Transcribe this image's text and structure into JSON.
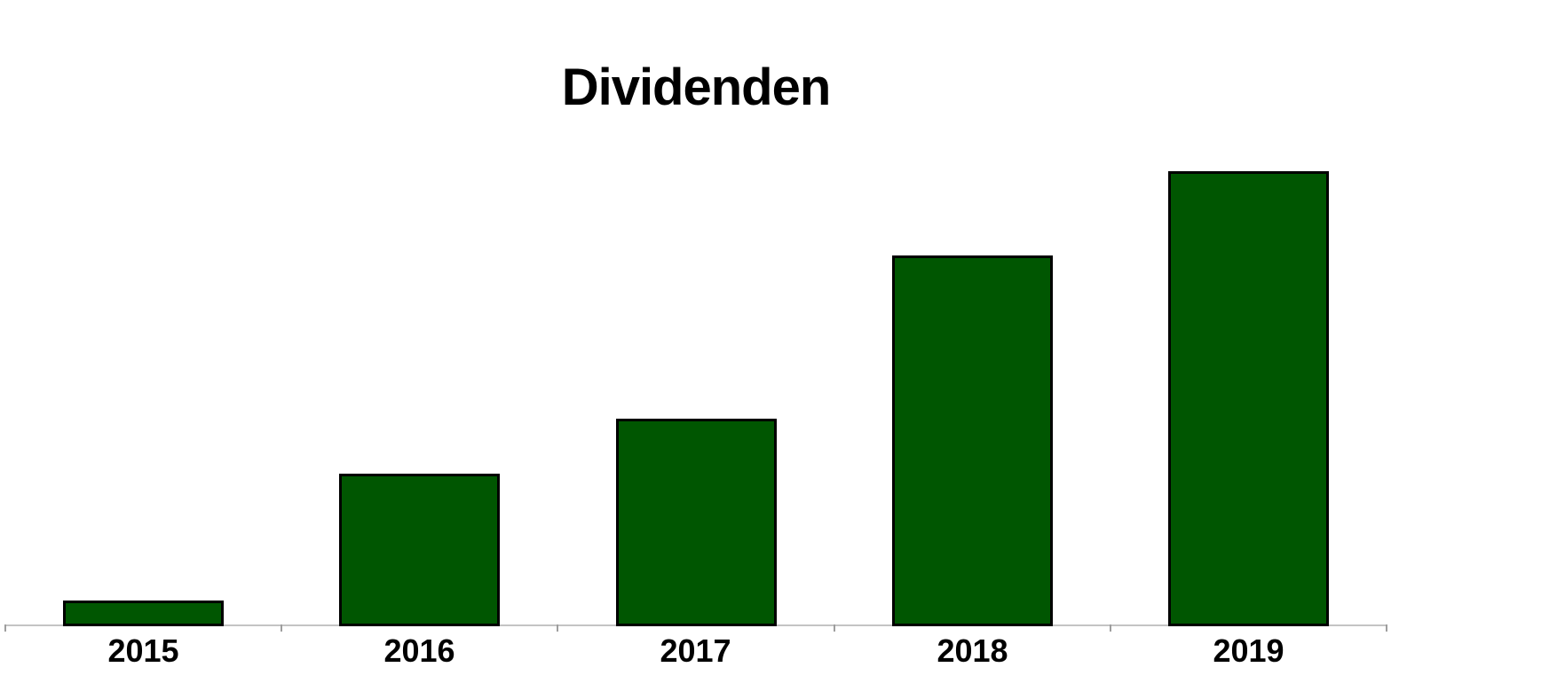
{
  "chart_data": {
    "type": "bar",
    "title": "Dividenden",
    "categories": [
      "2015",
      "2016",
      "2017",
      "2018",
      "2019"
    ],
    "values": [
      5.7,
      33.5,
      45.6,
      81.5,
      100
    ],
    "value_scale": "relative percent of tallest bar (chart displays no value axis, gridlines or data labels)",
    "xlabel": "",
    "ylabel": "",
    "legend": "none",
    "gridlines": false,
    "colors": {
      "bar_fill": "#005601",
      "bar_border": "#000000",
      "axis_line": "#c4c4c4",
      "tick": "#9e9e9e",
      "title_text": "#000000",
      "label_text": "#000000",
      "background": "#ffffff"
    }
  }
}
